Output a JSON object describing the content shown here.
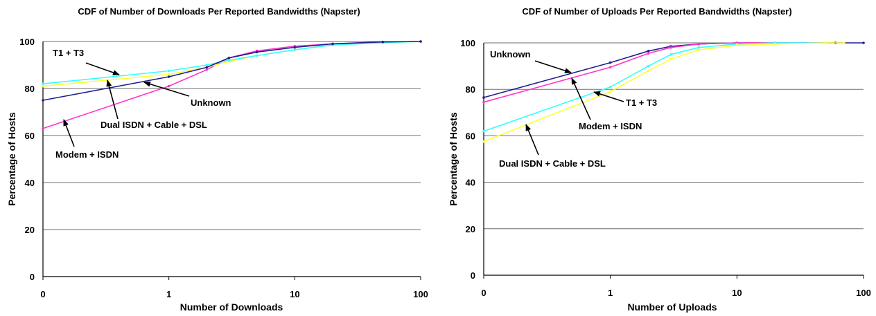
{
  "chart_data": [
    {
      "type": "line",
      "title": "CDF of Number of Downloads Per Reported Bandwidths (Napster)",
      "xlabel": "Number of Downloads",
      "ylabel": "Percentage of Hosts",
      "xscale": "log",
      "xticks": [
        "0",
        "1",
        "10",
        "100"
      ],
      "yticks": [
        "0",
        "20",
        "40",
        "60",
        "80",
        "100"
      ],
      "ylim": [
        0,
        100
      ],
      "grid": "horizontal",
      "series": [
        {
          "name": "Modem + ISDN",
          "color": "#ff33cc",
          "x": [
            0,
            1,
            2,
            3,
            5,
            10,
            20,
            50,
            100
          ],
          "y": [
            63,
            81,
            88,
            93,
            96,
            98,
            99,
            99.8,
            100
          ]
        },
        {
          "name": "Dual ISDN + Cable + DSL",
          "color": "#ffff33",
          "x": [
            0,
            1,
            2,
            3,
            5,
            10,
            20,
            50,
            100
          ],
          "y": [
            81,
            86,
            89,
            91.5,
            94,
            96.5,
            98.5,
            99.5,
            100
          ]
        },
        {
          "name": "T1 + T3",
          "color": "#33ffff",
          "x": [
            0,
            1,
            2,
            3,
            5,
            10,
            20,
            50,
            100
          ],
          "y": [
            82,
            87.5,
            90,
            92,
            94,
            96.5,
            98.5,
            99.5,
            100
          ]
        },
        {
          "name": "Unknown",
          "color": "#1f1f8f",
          "x": [
            0,
            1,
            2,
            3,
            5,
            10,
            20,
            50,
            100
          ],
          "y": [
            75,
            85,
            89,
            93,
            95.5,
            97.5,
            99,
            99.8,
            100
          ]
        }
      ],
      "annotations": [
        {
          "text": "T1 + T3",
          "series": "T1 + T3"
        },
        {
          "text": "Unknown",
          "series": "Unknown"
        },
        {
          "text": "Dual ISDN + Cable + DSL",
          "series": "Dual ISDN + Cable + DSL"
        },
        {
          "text": "Modem + ISDN",
          "series": "Modem + ISDN"
        }
      ]
    },
    {
      "type": "line",
      "title": "CDF of Number of Uploads Per Reported Bandwidths (Napster)",
      "xlabel": "Number of Uploads",
      "ylabel": "Percentage of Hosts",
      "xscale": "log",
      "xticks": [
        "0",
        "1",
        "10",
        "100"
      ],
      "yticks": [
        "0",
        "20",
        "40",
        "60",
        "80",
        "100"
      ],
      "ylim": [
        0,
        100
      ],
      "grid": "horizontal",
      "series": [
        {
          "name": "Unknown",
          "color": "#1f1f8f",
          "x": [
            0,
            1,
            2,
            3,
            5,
            10,
            20,
            60,
            100
          ],
          "y": [
            76.5,
            91.5,
            96.5,
            98.5,
            99.5,
            100,
            100,
            100,
            100
          ]
        },
        {
          "name": "Modem + ISDN",
          "color": "#ff33cc",
          "x": [
            0,
            1,
            2,
            3,
            5,
            10,
            20,
            50
          ],
          "y": [
            74.5,
            89.5,
            95.5,
            98,
            99.5,
            100,
            100,
            100
          ]
        },
        {
          "name": "T1 + T3",
          "color": "#33ffff",
          "x": [
            0,
            1,
            2,
            3,
            5,
            10,
            20,
            50
          ],
          "y": [
            62,
            81,
            90,
            95,
            98,
            99.5,
            100,
            100
          ]
        },
        {
          "name": "Dual ISDN + Cable + DSL",
          "color": "#ffff33",
          "x": [
            0,
            1,
            2,
            3,
            5,
            10,
            20,
            50,
            70
          ],
          "y": [
            57.5,
            79,
            88,
            93,
            97,
            99,
            99.5,
            100,
            100
          ]
        }
      ],
      "annotations": [
        {
          "text": "Unknown",
          "series": "Unknown"
        },
        {
          "text": "T1 + T3",
          "series": "T1 + T3"
        },
        {
          "text": "Modem + ISDN",
          "series": "Modem + ISDN"
        },
        {
          "text": "Dual ISDN + Cable + DSL",
          "series": "Dual ISDN + Cable + DSL"
        }
      ]
    }
  ]
}
